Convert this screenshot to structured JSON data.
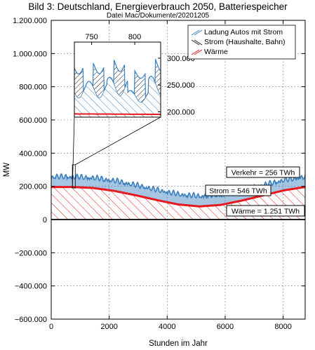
{
  "chart_data": {
    "type": "area",
    "title": "Bild 3: Deutschland, Energieverbrauch 2050, Batteriespeicher",
    "subtitle": "Datei Mac/Dokumente/20201205",
    "xlabel": "Stunden im Jahr",
    "ylabel": "MW",
    "xlim": [
      0,
      8760
    ],
    "ylim": [
      -600000,
      1200000
    ],
    "x_ticks": [
      0,
      2000,
      4000,
      6000,
      8000
    ],
    "x_tick_labels": [
      "0",
      "2000",
      "4000",
      "6000",
      "8000"
    ],
    "y_ticks": [
      -600000,
      -400000,
      -200000,
      0,
      200000,
      400000,
      600000,
      800000,
      1000000,
      1200000
    ],
    "y_tick_labels": [
      "−600.000",
      "−400.000",
      "−200.000",
      "0",
      "200.000",
      "400.000",
      "600.000",
      "800.000",
      "1.000.000",
      "1.200.000"
    ],
    "grid": true,
    "legend_position": "top-right",
    "series": [
      {
        "name": "Wärme",
        "color": "#e8191e",
        "pattern": "diagonal-hatch",
        "x": [
          0,
          730,
          1460,
          2190,
          2920,
          3650,
          4380,
          5110,
          5840,
          6570,
          7300,
          8030,
          8760
        ],
        "values": [
          196000,
          196000,
          190000,
          172000,
          146000,
          117000,
          91000,
          79000,
          88000,
          114000,
          145000,
          176000,
          196000
        ]
      },
      {
        "name": "Strom (Haushalte, Bahn)",
        "color": "#1a1a1a",
        "pattern": "diagonal-hatch",
        "daily_amplitude": 45000
      },
      {
        "name": "Ladung Autos mit Strom",
        "color": "#3a7fc0",
        "pattern": "diagonal-hatch",
        "daily_amplitude": 80000
      }
    ],
    "inset": {
      "xlim": [
        730,
        830
      ],
      "ylim": [
        190000,
        330000
      ],
      "x_ticks": [
        750,
        800
      ],
      "x_tick_labels": [
        "750",
        "800"
      ],
      "y_ticks": [
        200000,
        250000,
        300000
      ],
      "y_tick_labels": [
        "200.000",
        "250.000",
        "300.000"
      ]
    },
    "annotations": [
      {
        "text": "Verkehr = 256 TWh"
      },
      {
        "text": "Strom = 546 TWh"
      },
      {
        "text": "Wärme = 1.251 TWh"
      }
    ]
  }
}
